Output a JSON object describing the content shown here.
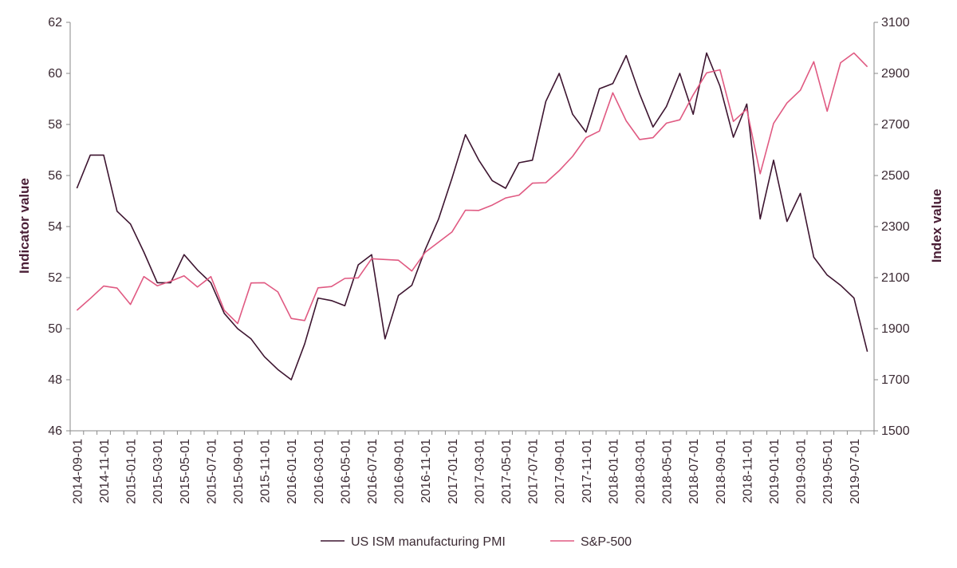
{
  "chart_data": {
    "type": "line",
    "title": "",
    "xlabel": "",
    "ylabel": "Indicator value",
    "ylabel_right": "Index value",
    "ylim": [
      46,
      62
    ],
    "ylim_right": [
      1500,
      3100
    ],
    "y_ticks": [
      46,
      48,
      50,
      52,
      54,
      56,
      58,
      60,
      62
    ],
    "y_ticks_right": [
      1500,
      1700,
      1900,
      2100,
      2300,
      2500,
      2700,
      2900,
      3100
    ],
    "x_tick_labels": [
      "2014-09-01",
      "2014-11-01",
      "2015-01-01",
      "2015-03-01",
      "2015-05-01",
      "2015-07-01",
      "2015-09-01",
      "2015-11-01",
      "2016-01-01",
      "2016-03-01",
      "2016-05-01",
      "2016-07-01",
      "2016-09-01",
      "2016-11-01",
      "2017-01-01",
      "2017-03-01",
      "2017-05-01",
      "2017-07-01",
      "2017-09-01",
      "2017-11-01",
      "2018-01-01",
      "2018-03-01",
      "2018-05-01",
      "2018-07-01",
      "2018-09-01",
      "2018-11-01",
      "2019-01-01",
      "2019-03-01",
      "2019-05-01",
      "2019-07-01"
    ],
    "x": [
      "2014-09-01",
      "2014-10-01",
      "2014-11-01",
      "2014-12-01",
      "2015-01-01",
      "2015-02-01",
      "2015-03-01",
      "2015-04-01",
      "2015-05-01",
      "2015-06-01",
      "2015-07-01",
      "2015-08-01",
      "2015-09-01",
      "2015-10-01",
      "2015-11-01",
      "2015-12-01",
      "2016-01-01",
      "2016-02-01",
      "2016-03-01",
      "2016-04-01",
      "2016-05-01",
      "2016-06-01",
      "2016-07-01",
      "2016-08-01",
      "2016-09-01",
      "2016-10-01",
      "2016-11-01",
      "2016-12-01",
      "2017-01-01",
      "2017-02-01",
      "2017-03-01",
      "2017-04-01",
      "2017-05-01",
      "2017-06-01",
      "2017-07-01",
      "2017-08-01",
      "2017-09-01",
      "2017-10-01",
      "2017-11-01",
      "2017-12-01",
      "2018-01-01",
      "2018-02-01",
      "2018-03-01",
      "2018-04-01",
      "2018-05-01",
      "2018-06-01",
      "2018-07-01",
      "2018-08-01",
      "2018-09-01",
      "2018-10-01",
      "2018-11-01",
      "2018-12-01",
      "2019-01-01",
      "2019-02-01",
      "2019-03-01",
      "2019-04-01",
      "2019-05-01",
      "2019-06-01",
      "2019-07-01",
      "2019-08-01"
    ],
    "series": [
      {
        "name": "US ISM manufacturing PMI",
        "axis": "left",
        "color": "#3d1530",
        "values": [
          55.5,
          56.8,
          56.8,
          54.6,
          54.1,
          53.0,
          51.8,
          51.8,
          52.9,
          52.3,
          51.8,
          50.6,
          50.0,
          49.6,
          48.9,
          48.4,
          48.0,
          49.4,
          51.2,
          51.1,
          50.9,
          52.5,
          52.9,
          49.6,
          51.3,
          51.7,
          53.1,
          54.3,
          55.9,
          57.6,
          56.6,
          55.8,
          55.5,
          56.5,
          56.6,
          58.9,
          60.0,
          58.4,
          57.7,
          59.4,
          59.6,
          60.7,
          59.2,
          57.9,
          58.7,
          60.0,
          58.4,
          60.8,
          59.5,
          57.5,
          58.8,
          54.3,
          56.6,
          54.2,
          55.3,
          52.8,
          52.1,
          51.7,
          51.2,
          49.1
        ]
      },
      {
        "name": "S&P-500",
        "axis": "right",
        "color": "#e05a82",
        "values": [
          1972,
          2018,
          2067,
          2059,
          1995,
          2104,
          2068,
          2086,
          2107,
          2063,
          2104,
          1972,
          1920,
          2079,
          2080,
          2044,
          1940,
          1932,
          2060,
          2065,
          2097,
          2099,
          2174,
          2171,
          2168,
          2126,
          2199,
          2239,
          2279,
          2364,
          2363,
          2384,
          2412,
          2423,
          2470,
          2472,
          2519,
          2575,
          2648,
          2674,
          2824,
          2714,
          2641,
          2648,
          2705,
          2718,
          2816,
          2902,
          2914,
          2712,
          2760,
          2507,
          2704,
          2784,
          2834,
          2946,
          2752,
          2942,
          2980,
          2926
        ]
      }
    ],
    "legend": "bottom",
    "grid": false
  }
}
